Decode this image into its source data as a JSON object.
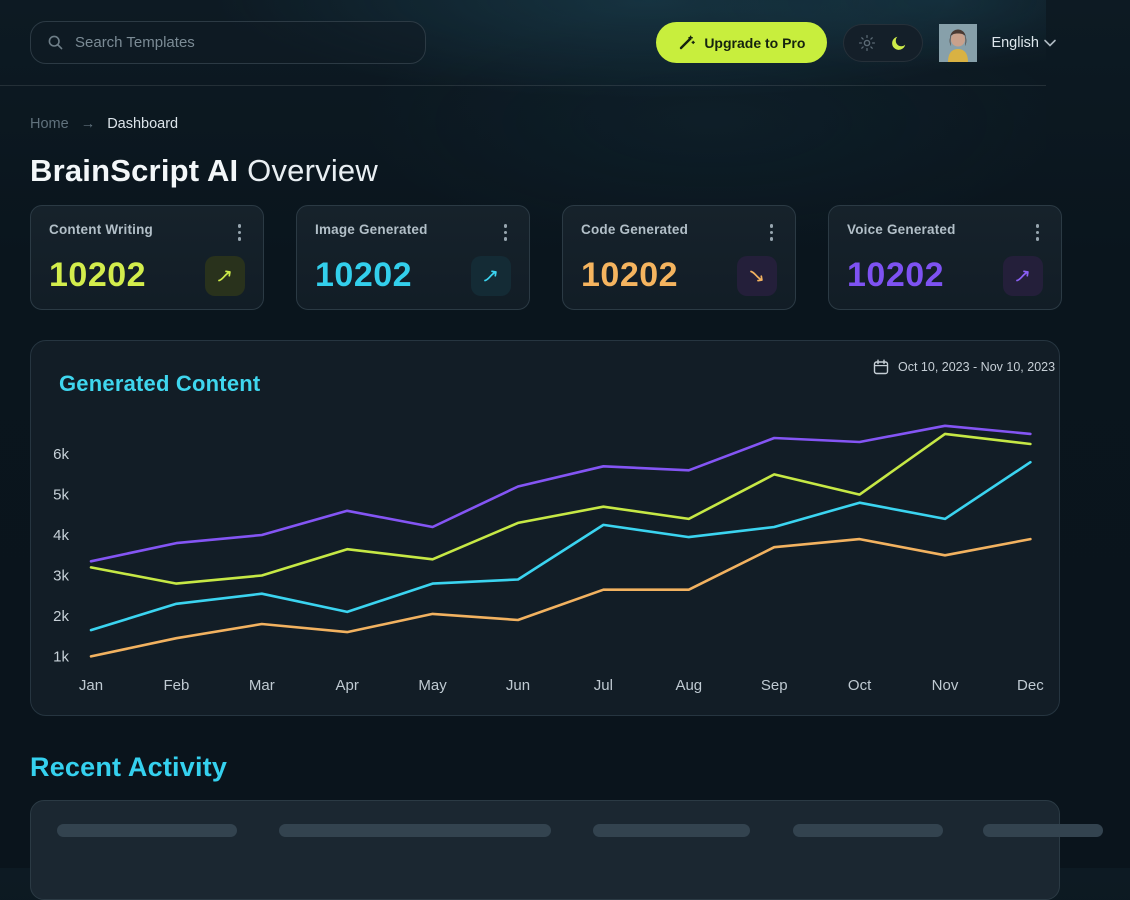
{
  "header": {
    "search_placeholder": "Search Templates",
    "upgrade_label": "Upgrade to Pro",
    "language": "English"
  },
  "breadcrumb": {
    "home": "Home",
    "separator": "→",
    "current": "Dashboard"
  },
  "title": {
    "brand": "BrainScript AI",
    "rest": " Overview"
  },
  "stat_cards": [
    {
      "label": "Content Writing",
      "value": "10202",
      "color": "#d3ed4c",
      "trend": "up"
    },
    {
      "label": "Image Generated",
      "value": "10202",
      "color": "#33cfec",
      "trend": "up"
    },
    {
      "label": "Code Generated",
      "value": "10202",
      "color": "#f5b45f",
      "trend": "down"
    },
    {
      "label": "Voice Generated",
      "value": "10202",
      "color": "#7e52f2",
      "trend": "up"
    }
  ],
  "chart": {
    "title": "Generated Content",
    "date_range": "Oct 10, 2023 - Nov 10, 2023"
  },
  "chart_data": {
    "type": "line",
    "title": "Generated Content",
    "categories": [
      "Jan",
      "Feb",
      "Mar",
      "Apr",
      "May",
      "Jun",
      "Jul",
      "Aug",
      "Sep",
      "Oct",
      "Nov",
      "Dec"
    ],
    "y_ticks": [
      "1k",
      "2k",
      "3k",
      "4k",
      "5k",
      "6k"
    ],
    "ylim": [
      1000,
      7000
    ],
    "grid": false,
    "legend_position": "none",
    "series": [
      {
        "name": "series-purple",
        "color": "#8455f4",
        "values": [
          3350,
          3800,
          4000,
          4600,
          4200,
          5200,
          5700,
          5600,
          6400,
          6300,
          6700,
          6500
        ]
      },
      {
        "name": "series-lime",
        "color": "#c6e845",
        "values": [
          3200,
          2800,
          3000,
          3650,
          3400,
          4300,
          4700,
          4400,
          5500,
          5000,
          6500,
          6250
        ]
      },
      {
        "name": "series-cyan",
        "color": "#3bd4f0",
        "values": [
          1650,
          2300,
          2550,
          2100,
          2800,
          2900,
          4250,
          3950,
          4200,
          4800,
          4400,
          5800
        ]
      },
      {
        "name": "series-orange",
        "color": "#f2b260",
        "values": [
          1000,
          1450,
          1800,
          1600,
          2050,
          1900,
          2650,
          2650,
          3700,
          3900,
          3500,
          3900
        ]
      }
    ]
  },
  "recent": {
    "title": "Recent Activity"
  },
  "colors": {
    "accent_lime": "#c8ee3d",
    "accent_cyan": "#35d1ef",
    "accent_orange": "#f5b45f",
    "accent_purple": "#7e52f2",
    "card_bg": "#121d26",
    "page_bg": "#0a141c"
  }
}
